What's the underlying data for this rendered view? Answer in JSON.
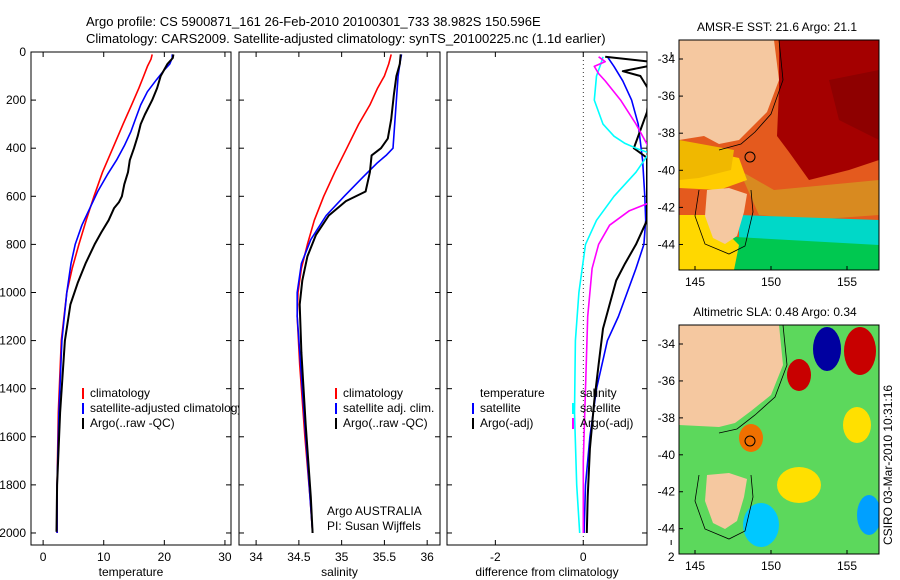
{
  "header": {
    "line1": "Argo profile: CS 5900871_161 26-Feb-2010 20100301_733 38.982S 150.596E",
    "line2": "Climatology: CARS2009. Satellite-adjusted climatology: synTS_20100225.nc (1.1d earlier)"
  },
  "side_stamp": "CSIRO 03-Mar-2010 10:31:16",
  "chart_data": [
    {
      "type": "line",
      "panel": "temperature",
      "xlabel": "temperature",
      "ylabel": "",
      "xlim": [
        -2,
        31
      ],
      "ylim": [
        2050,
        0
      ],
      "x_ticks": [
        0,
        10,
        20,
        30
      ],
      "y_ticks": [
        0,
        200,
        400,
        600,
        800,
        1000,
        1200,
        1400,
        1600,
        1800,
        2000
      ],
      "legend": {
        "placement": "bottom-right",
        "entries": [
          {
            "label": "climatology",
            "color": "#ff0000"
          },
          {
            "label": "satellite-adjusted climatology",
            "color": "#0000ff"
          },
          {
            "label": "Argo(..raw -QC)",
            "color": "#000000"
          }
        ]
      },
      "series": [
        {
          "name": "climatology",
          "color": "#ff0000",
          "x": [
            18.0,
            17.8,
            17.2,
            16.6,
            15.8,
            14.6,
            13.2,
            11.5,
            9.8,
            8.4,
            7.1,
            5.9,
            4.8,
            3.9,
            3.0,
            2.5,
            2.3,
            2.3
          ],
          "y": [
            10,
            30,
            60,
            100,
            150,
            220,
            300,
            400,
            500,
            600,
            700,
            800,
            900,
            1000,
            1200,
            1500,
            1800,
            2000
          ]
        },
        {
          "name": "satellite-adjusted climatology",
          "color": "#0000ff",
          "x": [
            21.3,
            21.3,
            20.9,
            20.0,
            18.7,
            17.2,
            16.1,
            15.3,
            14.5,
            13.4,
            12.1,
            10.6,
            9.0,
            7.7,
            6.4,
            5.3,
            4.6,
            3.9,
            3.1,
            2.6,
            2.3,
            2.3
          ],
          "y": [
            10,
            25,
            50,
            75,
            115,
            165,
            220,
            275,
            330,
            390,
            450,
            510,
            580,
            650,
            720,
            800,
            880,
            1000,
            1200,
            1500,
            1800,
            2000
          ]
        },
        {
          "name": "Argo(..raw -QC)",
          "color": "#000000",
          "x": [
            21.5,
            21.4,
            20.5,
            19.4,
            18.8,
            18.0,
            16.8,
            16.1,
            15.6,
            15.0,
            14.3,
            14.0,
            13.4,
            13.0,
            12.5,
            11.7,
            10.8,
            9.6,
            8.5,
            7.0,
            5.7,
            4.5,
            3.6,
            2.8,
            2.3,
            2.2
          ],
          "y": [
            10,
            25,
            50,
            100,
            150,
            200,
            260,
            300,
            350,
            400,
            450,
            500,
            550,
            600,
            625,
            650,
            700,
            750,
            800,
            880,
            960,
            1050,
            1200,
            1500,
            1800,
            1995
          ]
        }
      ]
    },
    {
      "type": "line",
      "panel": "salinity",
      "xlabel": "salinity",
      "ylabel": "",
      "xlim": [
        33.8,
        36.15
      ],
      "ylim": [
        2050,
        0
      ],
      "x_ticks": [
        34,
        34.5,
        35,
        35.5,
        36
      ],
      "legend": {
        "placement": "bottom-right",
        "entries": [
          {
            "label": "climatology",
            "color": "#ff0000"
          },
          {
            "label": "satellite adj. clim.",
            "color": "#0000ff"
          },
          {
            "label": "Argo(..raw -QC)",
            "color": "#000000"
          }
        ]
      },
      "annotation": [
        "Argo AUSTRALIA",
        "PI: Susan Wijffels"
      ],
      "series": [
        {
          "name": "climatology",
          "color": "#ff0000",
          "x": [
            35.58,
            35.55,
            35.5,
            35.42,
            35.33,
            35.2,
            35.06,
            34.92,
            34.79,
            34.68,
            34.6,
            34.53,
            34.49,
            34.48,
            34.51,
            34.57,
            34.63,
            34.66
          ],
          "y": [
            10,
            50,
            100,
            150,
            220,
            300,
            400,
            500,
            600,
            700,
            800,
            900,
            1000,
            1100,
            1300,
            1600,
            1850,
            2000
          ]
        },
        {
          "name": "satellite adj. clim.",
          "color": "#0000ff",
          "x": [
            35.7,
            35.68,
            35.66,
            35.64,
            35.62,
            35.6,
            35.52,
            35.42,
            35.25,
            35.03,
            34.82,
            34.64,
            34.53,
            34.48,
            34.48,
            34.52,
            34.58,
            34.63,
            34.66
          ],
          "y": [
            10,
            50,
            100,
            200,
            300,
            400,
            430,
            460,
            520,
            600,
            680,
            780,
            880,
            1000,
            1100,
            1300,
            1600,
            1850,
            2000
          ]
        },
        {
          "name": "Argo(..raw -QC)",
          "color": "#000000",
          "x": [
            35.69,
            35.68,
            35.64,
            35.61,
            35.58,
            35.54,
            35.46,
            35.35,
            35.33,
            35.28,
            35.05,
            34.85,
            34.7,
            34.6,
            34.54,
            34.51,
            34.53,
            34.58,
            34.64,
            34.66
          ],
          "y": [
            10,
            50,
            100,
            180,
            280,
            360,
            400,
            430,
            500,
            580,
            620,
            680,
            760,
            850,
            950,
            1050,
            1250,
            1550,
            1850,
            2000
          ]
        }
      ]
    },
    {
      "type": "line",
      "panel": "difference",
      "xlabel": "difference from climatology",
      "ylabel": "",
      "xlim": [
        -3.1,
        1.45
      ],
      "ylim": [
        2050,
        0
      ],
      "x_ticks": [
        -2,
        0,
        2
      ],
      "zero_line": "dotted",
      "legend": {
        "placement": "bottom",
        "columns": [
          {
            "heading": "temperature",
            "entries": [
              {
                "label": "satellite",
                "color": "#0000ff"
              },
              {
                "label": "Argo(-adj)",
                "color": "#000000"
              }
            ]
          },
          {
            "heading": "salinity",
            "entries": [
              {
                "label": "satellite",
                "color": "#00ffff"
              },
              {
                "label": "Argo(-adj)",
                "color": "#ff00ff"
              }
            ]
          }
        ]
      },
      "series": [
        {
          "name": "satellite",
          "color": "#0000ff",
          "x": [
            0.55,
            0.7,
            0.9,
            1.1,
            1.25,
            1.35,
            1.4,
            1.42,
            1.38,
            1.2,
            1.0,
            0.8,
            0.55,
            0.3,
            0.15,
            0.05,
            0.02
          ],
          "y": [
            20,
            60,
            120,
            200,
            300,
            450,
            600,
            700,
            800,
            900,
            1000,
            1100,
            1200,
            1400,
            1600,
            1800,
            2000
          ]
        },
        {
          "name": "Argo(-adj)",
          "color": "#000000",
          "x": [
            0.5,
            1.5,
            1.45,
            0.9,
            1.3,
            1.5,
            1.45,
            1.15,
            1.45,
            1.45,
            1.2,
            0.95,
            0.75,
            0.6,
            0.45,
            0.35,
            0.25,
            0.15,
            0.1,
            0.08
          ],
          "y": [
            20,
            40,
            60,
            80,
            100,
            160,
            250,
            400,
            440,
            700,
            800,
            880,
            950,
            1050,
            1150,
            1300,
            1450,
            1650,
            1850,
            2000
          ]
        },
        {
          "name": "satellite",
          "color": "#00ffff",
          "x": [
            0.45,
            0.4,
            0.3,
            0.25,
            0.45,
            0.7,
            0.95,
            1.2,
            1.5,
            1.2,
            0.7,
            0.3,
            0.05,
            -0.1,
            -0.18,
            -0.2,
            -0.15,
            -0.08
          ],
          "y": [
            20,
            50,
            100,
            200,
            300,
            350,
            380,
            400,
            420,
            500,
            600,
            700,
            800,
            1000,
            1200,
            1500,
            1800,
            2000
          ]
        },
        {
          "name": "Argo(-adj)",
          "color": "#ff00ff",
          "x": [
            0.35,
            0.5,
            0.25,
            0.35,
            0.5,
            0.85,
            1.2,
            1.5,
            1.7,
            1.9,
            1.6,
            1.05,
            0.6,
            0.35,
            0.2,
            0.1,
            0.05,
            0.0,
            0.0
          ],
          "y": [
            20,
            40,
            60,
            90,
            120,
            200,
            300,
            400,
            450,
            550,
            620,
            660,
            720,
            800,
            900,
            1100,
            1400,
            1700,
            2000
          ]
        }
      ]
    }
  ],
  "maps": [
    {
      "title": "AMSR-E SST: 21.6 Argo: 21.1",
      "lat_ticks": [
        "-34",
        "-36",
        "-38",
        "-40",
        "-42",
        "-44"
      ],
      "lon_ticks": [
        "145",
        "150",
        "155"
      ],
      "float_marker": {
        "lon": 150.596,
        "lat": -38.982
      },
      "colors": {
        "land": "#f5c8a0",
        "warm": "#a40000",
        "mid": "#d4541a",
        "cool": "#ffcc00",
        "cold": "#00c8a0"
      }
    },
    {
      "title": "Altimetric SLA: 0.48 Argo: 0.34",
      "lat_ticks": [
        "-34",
        "-36",
        "-38",
        "-40",
        "-42",
        "-44"
      ],
      "lon_ticks": [
        "145",
        "150",
        "155"
      ],
      "float_marker": {
        "lon": 150.596,
        "lat": -38.982
      },
      "colors": {
        "land": "#f5c8a0",
        "background": "#5cd85c",
        "high": "#c80000",
        "low": "#0000a0"
      }
    }
  ]
}
